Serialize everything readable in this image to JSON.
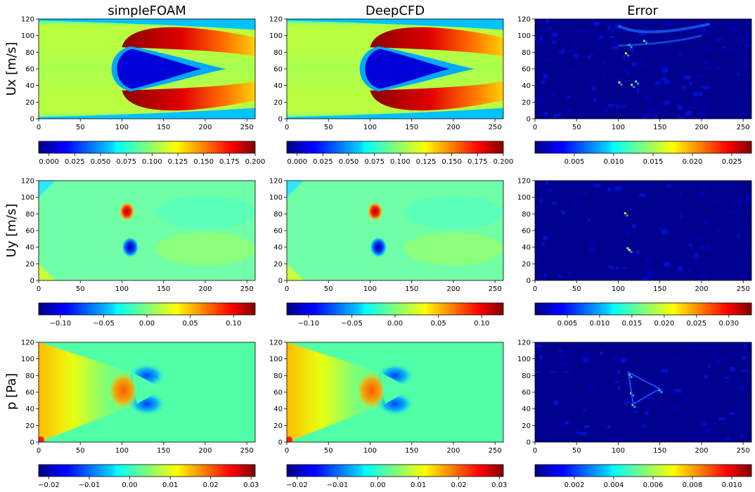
{
  "figure": {
    "columns": [
      "simpleFOAM",
      "DeepCFD",
      "Error"
    ],
    "rows": [
      "Ux [m/s]",
      "Uy [m/s]",
      "p [Pa]"
    ]
  },
  "chart_data": [
    {
      "type": "heatmap",
      "title": "simpleFOAM",
      "ylabel": "Ux [m/s]",
      "field": "Ux",
      "colormap": "jet",
      "xlim": [
        0,
        260
      ],
      "ylim": [
        0,
        120
      ],
      "xticks": [
        "0",
        "50",
        "100",
        "150",
        "200",
        "250"
      ],
      "yticks": [
        "0",
        "20",
        "40",
        "60",
        "80",
        "100",
        "120"
      ],
      "colorbar": {
        "range": [
          -0.01,
          0.2
        ],
        "ticks": [
          0,
          0.025,
          0.05,
          0.075,
          0.1,
          0.125,
          0.15,
          0.175,
          0.2
        ],
        "tick_labels": [
          "0.000",
          "0.025",
          "0.050",
          "0.075",
          "0.100",
          "0.125",
          "0.150",
          "0.175",
          "0.200"
        ]
      }
    },
    {
      "type": "heatmap",
      "title": "DeepCFD",
      "ylabel": "",
      "field": "Ux",
      "colormap": "jet",
      "xlim": [
        0,
        260
      ],
      "ylim": [
        0,
        120
      ],
      "xticks": [
        "0",
        "50",
        "100",
        "150",
        "200",
        "250"
      ],
      "yticks": [
        "0",
        "20",
        "40",
        "60",
        "80",
        "100",
        "120"
      ],
      "colorbar": {
        "range": [
          -0.01,
          0.2
        ],
        "ticks": [
          0,
          0.025,
          0.05,
          0.075,
          0.1,
          0.125,
          0.15,
          0.175,
          0.2
        ],
        "tick_labels": [
          "0.000",
          "0.025",
          "0.050",
          "0.075",
          "0.100",
          "0.125",
          "0.150",
          "0.175",
          "0.200"
        ]
      }
    },
    {
      "type": "heatmap",
      "title": "Error",
      "ylabel": "",
      "field": "Ux_error",
      "colormap": "jet",
      "xlim": [
        0,
        260
      ],
      "ylim": [
        0,
        120
      ],
      "xticks": [
        "0",
        "50",
        "100",
        "150",
        "200",
        "250"
      ],
      "yticks": [
        "0",
        "20",
        "40",
        "60",
        "80",
        "100",
        "120"
      ],
      "colorbar": {
        "range": [
          0,
          0.0275
        ],
        "ticks": [
          0.005,
          0.01,
          0.015,
          0.02,
          0.025
        ],
        "tick_labels": [
          "0.005",
          "0.010",
          "0.015",
          "0.020",
          "0.025"
        ]
      }
    },
    {
      "type": "heatmap",
      "title": "",
      "ylabel": "Uy [m/s]",
      "field": "Uy",
      "colormap": "jet",
      "xlim": [
        0,
        260
      ],
      "ylim": [
        0,
        120
      ],
      "xticks": [
        "0",
        "50",
        "100",
        "150",
        "200",
        "250"
      ],
      "yticks": [
        "0",
        "20",
        "40",
        "60",
        "80",
        "100",
        "120"
      ],
      "colorbar": {
        "range": [
          -0.125,
          0.125
        ],
        "ticks": [
          -0.1,
          -0.05,
          0,
          0.05,
          0.1
        ],
        "tick_labels": [
          "−0.10",
          "−0.05",
          "0.00",
          "0.05",
          "0.10"
        ]
      }
    },
    {
      "type": "heatmap",
      "title": "",
      "ylabel": "",
      "field": "Uy",
      "colormap": "jet",
      "xlim": [
        0,
        260
      ],
      "ylim": [
        0,
        120
      ],
      "xticks": [
        "0",
        "50",
        "100",
        "150",
        "200",
        "250"
      ],
      "yticks": [
        "0",
        "20",
        "40",
        "60",
        "80",
        "100",
        "120"
      ],
      "colorbar": {
        "range": [
          -0.125,
          0.125
        ],
        "ticks": [
          -0.1,
          -0.05,
          0,
          0.05,
          0.1
        ],
        "tick_labels": [
          "−0.10",
          "−0.05",
          "0.00",
          "0.05",
          "0.10"
        ]
      }
    },
    {
      "type": "heatmap",
      "title": "",
      "ylabel": "",
      "field": "Uy_error",
      "colormap": "jet",
      "xlim": [
        0,
        260
      ],
      "ylim": [
        0,
        120
      ],
      "xticks": [
        "0",
        "50",
        "100",
        "150",
        "200",
        "250"
      ],
      "yticks": [
        "0",
        "20",
        "40",
        "60",
        "80",
        "100",
        "120"
      ],
      "colorbar": {
        "range": [
          0,
          0.0335
        ],
        "ticks": [
          0.005,
          0.01,
          0.015,
          0.02,
          0.025,
          0.03
        ],
        "tick_labels": [
          "0.005",
          "0.010",
          "0.015",
          "0.020",
          "0.025",
          "0.030"
        ]
      }
    },
    {
      "type": "heatmap",
      "title": "",
      "ylabel": "p [Pa]",
      "field": "p",
      "colormap": "jet",
      "xlim": [
        0,
        260
      ],
      "ylim": [
        0,
        120
      ],
      "xticks": [
        "0",
        "50",
        "100",
        "150",
        "200",
        "250"
      ],
      "yticks": [
        "0",
        "20",
        "40",
        "60",
        "80",
        "100",
        "120"
      ],
      "colorbar": {
        "range": [
          -0.0225,
          0.031
        ],
        "ticks": [
          -0.02,
          -0.01,
          0,
          0.01,
          0.02,
          0.03
        ],
        "tick_labels": [
          "−0.02",
          "−0.01",
          "0.00",
          "0.01",
          "0.02",
          "0.03"
        ]
      }
    },
    {
      "type": "heatmap",
      "title": "",
      "ylabel": "",
      "field": "p",
      "colormap": "jet",
      "xlim": [
        0,
        260
      ],
      "ylim": [
        0,
        120
      ],
      "xticks": [
        "0",
        "50",
        "100",
        "150",
        "200",
        "250"
      ],
      "yticks": [
        "0",
        "20",
        "40",
        "60",
        "80",
        "100",
        "120"
      ],
      "colorbar": {
        "range": [
          -0.0225,
          0.031
        ],
        "ticks": [
          -0.02,
          -0.01,
          0,
          0.01,
          0.02,
          0.03
        ],
        "tick_labels": [
          "−0.02",
          "−0.01",
          "0.00",
          "0.01",
          "0.02",
          "0.03"
        ]
      }
    },
    {
      "type": "heatmap",
      "title": "",
      "ylabel": "",
      "field": "p_error",
      "colormap": "jet",
      "xlim": [
        0,
        260
      ],
      "ylim": [
        0,
        120
      ],
      "xticks": [
        "0",
        "50",
        "100",
        "150",
        "200",
        "250"
      ],
      "yticks": [
        "0",
        "20",
        "40",
        "60",
        "80",
        "100",
        "120"
      ],
      "colorbar": {
        "range": [
          0,
          0.011
        ],
        "ticks": [
          0.002,
          0.004,
          0.006,
          0.008,
          0.01
        ],
        "tick_labels": [
          "0.002",
          "0.004",
          "0.006",
          "0.008",
          "0.010"
        ]
      }
    }
  ]
}
